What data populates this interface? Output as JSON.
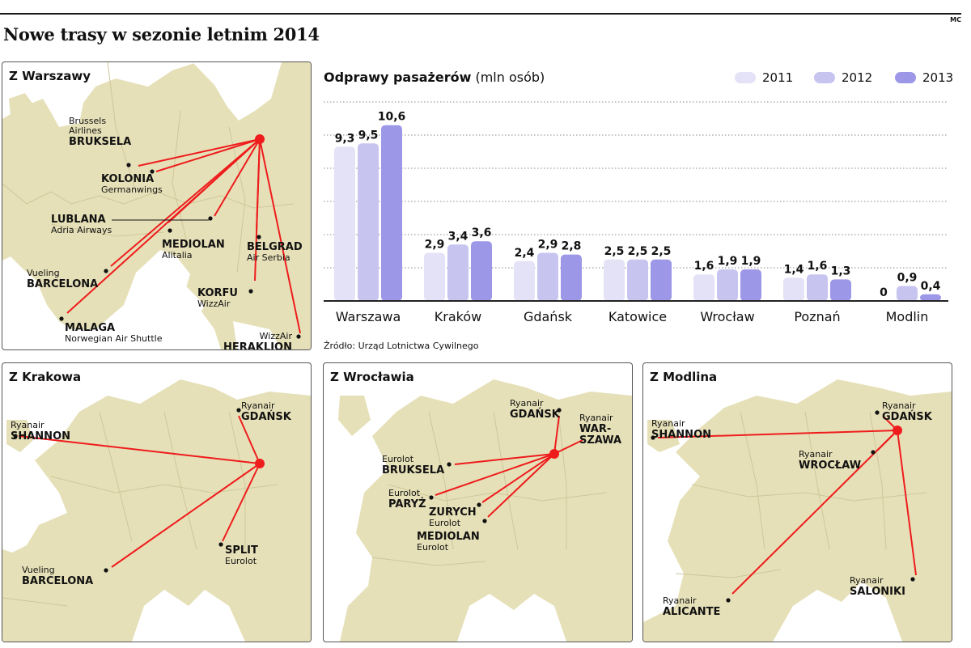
{
  "title": "Nowe trasy w sezonie letnim 2014",
  "corner_mark": "MC",
  "source": "Źródło: Urząd Lotnictwa Cywilnego",
  "colors": {
    "route": "#ee1c1c",
    "land": "#e6e0b8",
    "sea": "#ffffff",
    "s2011": "#e4e2f6",
    "s2012": "#c7c4f0",
    "s2013": "#9d97e8"
  },
  "chart_data": {
    "type": "bar",
    "title": "Odprawy pasażerów",
    "unit": "(mln osób)",
    "categories": [
      "Warszawa",
      "Kraków",
      "Gdańsk",
      "Katowice",
      "Wrocław",
      "Poznań",
      "Modlin"
    ],
    "series": [
      {
        "name": "2011",
        "values": [
          9.3,
          2.9,
          2.4,
          2.5,
          1.6,
          1.4,
          0
        ],
        "labels": [
          "9,3",
          "2,9",
          "2,4",
          "2,5",
          "1,6",
          "1,4",
          "0"
        ]
      },
      {
        "name": "2012",
        "values": [
          9.5,
          3.4,
          2.9,
          2.5,
          1.9,
          1.6,
          0.9
        ],
        "labels": [
          "9,5",
          "3,4",
          "2,9",
          "2,5",
          "1,9",
          "1,6",
          "0,9"
        ]
      },
      {
        "name": "2013",
        "values": [
          10.6,
          3.6,
          2.8,
          2.5,
          1.9,
          1.3,
          0.4
        ],
        "labels": [
          "10,6",
          "3,6",
          "2,8",
          "2,5",
          "1,9",
          "1,3",
          "0,4"
        ]
      }
    ],
    "ylim": [
      0,
      12
    ],
    "grid": true,
    "legend": "top-right"
  },
  "maps": {
    "warszawa": {
      "title": "Z Warszawy",
      "destinations": [
        {
          "city": "BRUKSELA",
          "airline": "Brussels Airlines"
        },
        {
          "city": "KOLONIA",
          "airline": "Germanwings"
        },
        {
          "city": "LUBLANA",
          "airline": "Adria Airways"
        },
        {
          "city": "MEDIOLAN",
          "airline": "Alitalia"
        },
        {
          "city": "BELGRAD",
          "airline": "Air Serbia"
        },
        {
          "city": "BARCELONA",
          "airline": "Vueling"
        },
        {
          "city": "KORFU",
          "airline": "WizzAir"
        },
        {
          "city": "MALAGA",
          "airline": "Norwegian Air Shuttle"
        },
        {
          "city": "HERAKLION",
          "airline": "WizzAir"
        }
      ]
    },
    "krakow": {
      "title": "Z Krakowa",
      "destinations": [
        {
          "city": "SHANNON",
          "airline": "Ryanair"
        },
        {
          "city": "GDAŃSK",
          "airline": "Ryanair"
        },
        {
          "city": "SPLIT",
          "airline": "Eurolot"
        },
        {
          "city": "BARCELONA",
          "airline": "Vueling"
        }
      ]
    },
    "wroclaw": {
      "title": "Z Wrocławia",
      "destinations": [
        {
          "city": "GDAŃSK",
          "airline": "Ryanair"
        },
        {
          "city": "WAR-",
          "city2": "SZAWA",
          "airline": "Ryanair"
        },
        {
          "city": "BRUKSELA",
          "airline": "Eurolot"
        },
        {
          "city": "PARYŻ",
          "airline": "Eurolot"
        },
        {
          "city": "ZURYCH",
          "airline": "Eurolot"
        },
        {
          "city": "MEDIOLAN",
          "airline": "Eurolot"
        }
      ]
    },
    "modlin": {
      "title": "Z Modlina",
      "destinations": [
        {
          "city": "SHANNON",
          "airline": "Ryanair"
        },
        {
          "city": "GDAŃSK",
          "airline": "Ryanair"
        },
        {
          "city": "WROCŁAW",
          "airline": "Ryanair"
        },
        {
          "city": "SALONIKI",
          "airline": "Ryanair"
        },
        {
          "city": "ALICANTE",
          "airline": "Ryanair"
        }
      ]
    }
  }
}
